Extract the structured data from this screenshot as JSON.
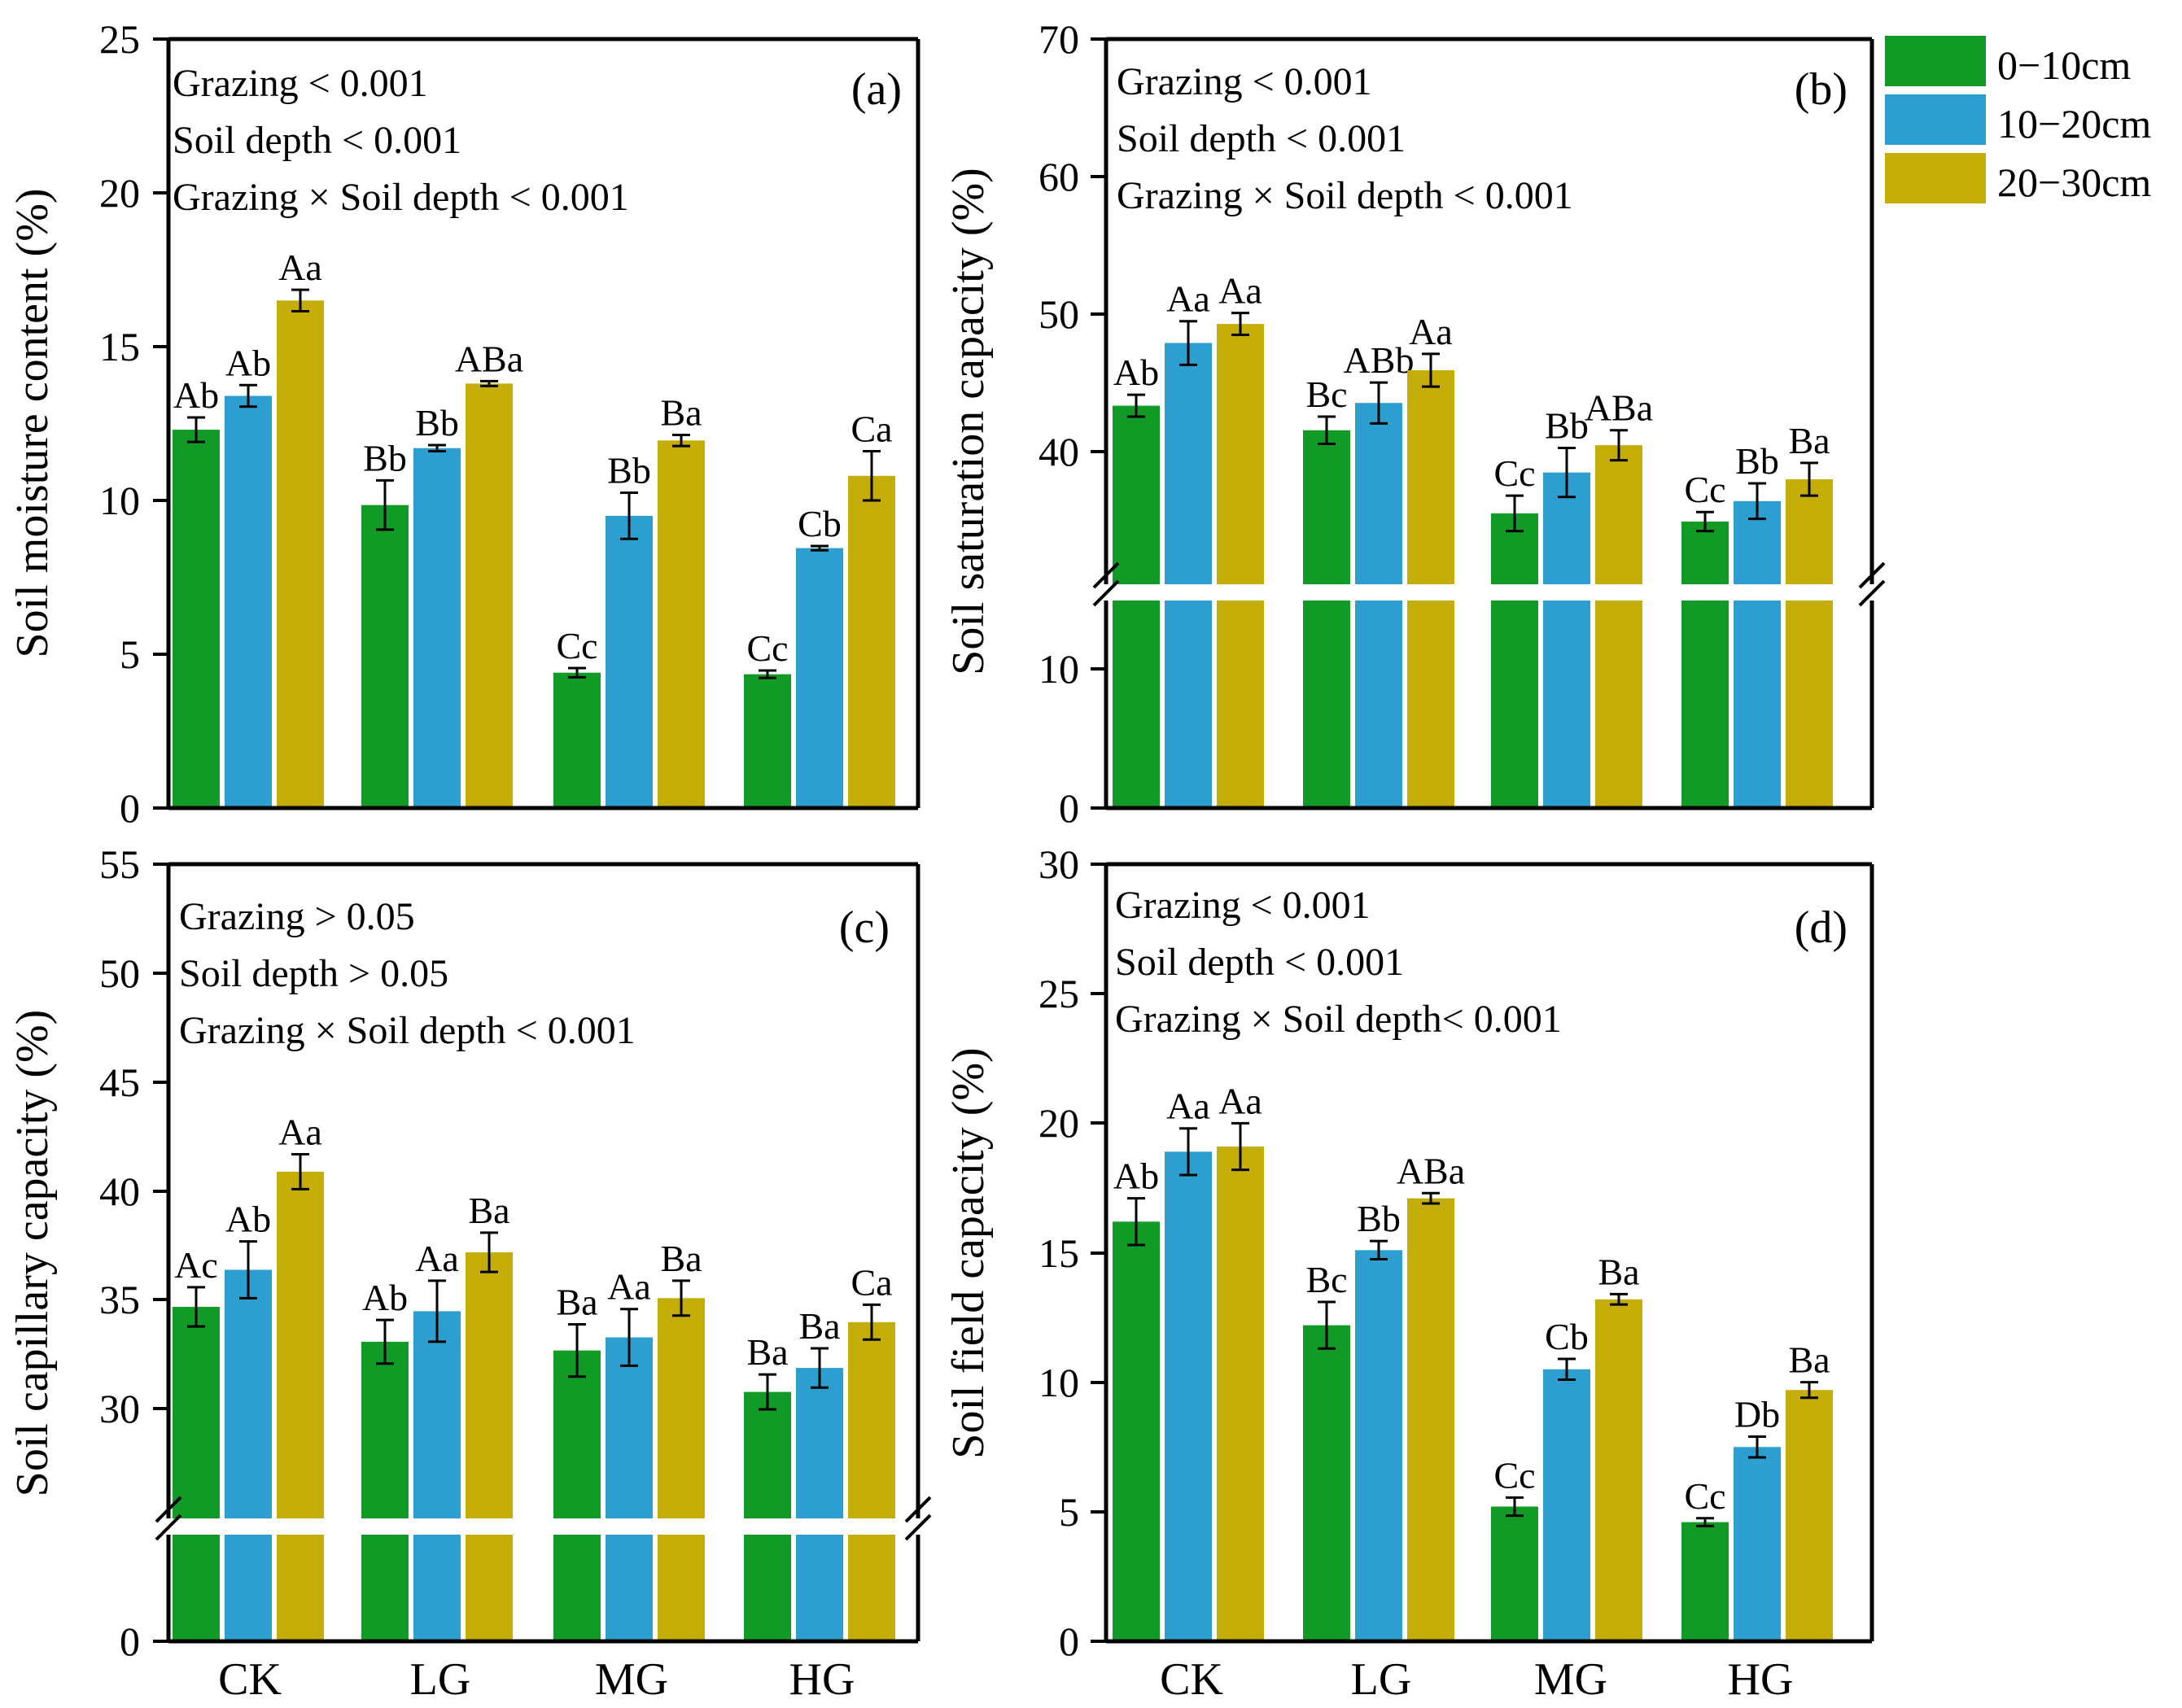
{
  "colors": {
    "d0_10": "#129a26",
    "d10_20": "#2c9fd0",
    "d20_30": "#c5ad08",
    "axis": "#000000"
  },
  "legend": {
    "items": [
      "0−10cm",
      "10−20cm",
      "20−30cm"
    ]
  },
  "chart_data": [
    {
      "id": "a",
      "type": "bar",
      "panel_label": "(a)",
      "ylabel": "Soil moisture content (%)",
      "categories": [
        "CK",
        "LG",
        "MG",
        "HG"
      ],
      "ylim": [
        0,
        25
      ],
      "yticks": [
        "0",
        "5",
        "10",
        "15",
        "20",
        "25"
      ],
      "stats": [
        "Grazing < 0.001",
        "Soil depth < 0.001",
        "Grazing × Soil depth < 0.001"
      ],
      "series": [
        {
          "name": "0−10cm",
          "values": [
            12.3,
            9.85,
            4.4,
            4.35
          ],
          "errors": [
            0.4,
            0.8,
            0.15,
            0.12
          ],
          "letters": [
            "Ab",
            "Bb",
            "Cc",
            "Cc"
          ]
        },
        {
          "name": "10−20cm",
          "values": [
            13.4,
            11.7,
            9.5,
            8.45
          ],
          "errors": [
            0.35,
            0.1,
            0.75,
            0.07
          ],
          "letters": [
            "Ab",
            "Bb",
            "Bb",
            "Cb"
          ]
        },
        {
          "name": "20−30cm",
          "values": [
            16.5,
            13.8,
            11.95,
            10.8
          ],
          "errors": [
            0.35,
            0.08,
            0.18,
            0.8
          ],
          "letters": [
            "Aa",
            "ABa",
            "Ba",
            "Ca"
          ]
        }
      ]
    },
    {
      "id": "b",
      "type": "bar",
      "panel_label": "(b)",
      "ylabel": "Soil saturation capacity (%)",
      "categories": [
        "CK",
        "LG",
        "MG",
        "HG"
      ],
      "ylim": [
        0,
        70
      ],
      "axis_break": [
        15,
        30
      ],
      "yticks": [
        "0",
        "10",
        "40",
        "50",
        "60",
        "70"
      ],
      "stats": [
        "Grazing < 0.001",
        "Soil depth < 0.001",
        "Grazing × Soil depth < 0.001"
      ],
      "series": [
        {
          "name": "0−10cm",
          "values": [
            43.1,
            41.3,
            35.2,
            34.6
          ],
          "errors": [
            0.8,
            1.0,
            1.3,
            0.7
          ],
          "letters": [
            "Ab",
            "Bc",
            "Cc",
            "Cc"
          ]
        },
        {
          "name": "10−20cm",
          "values": [
            47.7,
            43.3,
            38.2,
            36.1
          ],
          "errors": [
            1.6,
            1.5,
            1.8,
            1.3
          ],
          "letters": [
            "Aa",
            "ABb",
            "Bb",
            "Bb"
          ]
        },
        {
          "name": "20−30cm",
          "values": [
            49.1,
            45.7,
            40.2,
            37.7
          ],
          "errors": [
            0.8,
            1.2,
            1.1,
            1.2
          ],
          "letters": [
            "Aa",
            "Aa",
            "ABa",
            "Ba"
          ]
        }
      ]
    },
    {
      "id": "c",
      "type": "bar",
      "panel_label": "(c)",
      "ylabel": "Soil capillary capacity (%)",
      "categories": [
        "CK",
        "LG",
        "MG",
        "HG"
      ],
      "ylim": [
        0,
        55
      ],
      "axis_break": [
        5,
        25
      ],
      "yticks": [
        "0",
        "30",
        "35",
        "40",
        "45",
        "50",
        "55"
      ],
      "stats": [
        "Grazing > 0.05",
        "Soil depth > 0.05",
        "Grazing × Soil depth < 0.001"
      ],
      "series": [
        {
          "name": "0−10cm",
          "values": [
            34.7,
            33.1,
            32.7,
            30.8
          ],
          "errors": [
            0.9,
            1.0,
            1.2,
            0.8
          ],
          "letters": [
            "Ac",
            "Ab",
            "Ba",
            "Ba"
          ]
        },
        {
          "name": "10−20cm",
          "values": [
            36.4,
            34.5,
            33.3,
            31.9
          ],
          "errors": [
            1.3,
            1.4,
            1.3,
            0.9
          ],
          "letters": [
            "Ab",
            "Aa",
            "Aa",
            "Ba"
          ]
        },
        {
          "name": "20−30cm",
          "values": [
            40.9,
            37.2,
            35.1,
            34.0
          ],
          "errors": [
            0.8,
            0.9,
            0.8,
            0.8
          ],
          "letters": [
            "Aa",
            "Ba",
            "Ba",
            "Ca"
          ]
        }
      ]
    },
    {
      "id": "d",
      "type": "bar",
      "panel_label": "(d)",
      "ylabel": "Soil field capacity (%)",
      "categories": [
        "CK",
        "LG",
        "MG",
        "HG"
      ],
      "ylim": [
        0,
        30
      ],
      "yticks": [
        "0",
        "5",
        "10",
        "15",
        "20",
        "25",
        "30"
      ],
      "stats": [
        "Grazing < 0.001",
        "Soil depth < 0.001",
        "Grazing × Soil depth< 0.001"
      ],
      "series": [
        {
          "name": "0−10cm",
          "values": [
            16.2,
            12.2,
            5.2,
            4.6
          ],
          "errors": [
            0.9,
            0.9,
            0.35,
            0.15
          ],
          "letters": [
            "Ab",
            "Bc",
            "Cc",
            "Cc"
          ]
        },
        {
          "name": "10−20cm",
          "values": [
            18.9,
            15.1,
            10.5,
            7.5
          ],
          "errors": [
            0.9,
            0.35,
            0.4,
            0.4
          ],
          "letters": [
            "Aa",
            "Bb",
            "Cb",
            "Db"
          ]
        },
        {
          "name": "20−30cm",
          "values": [
            19.1,
            17.1,
            13.2,
            9.7
          ],
          "errors": [
            0.9,
            0.2,
            0.2,
            0.3
          ],
          "letters": [
            "Aa",
            "ABa",
            "Ba",
            "Ba"
          ]
        }
      ]
    }
  ]
}
